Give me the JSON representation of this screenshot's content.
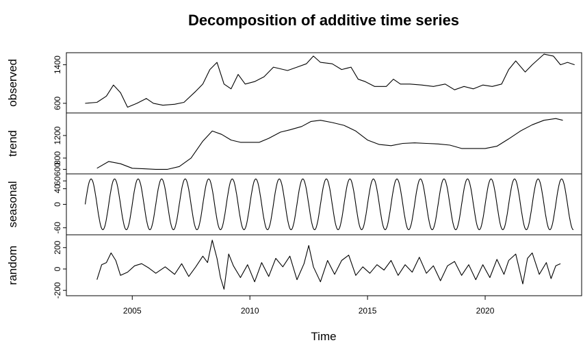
{
  "chart_data": {
    "type": "line",
    "title": "Decomposition of additive time series",
    "xlabel": "Time",
    "xlim": [
      2002.2,
      2024.1
    ],
    "x_ticks": [
      2005,
      2010,
      2015,
      2020
    ],
    "x_tick_labels": [
      "2005",
      "2010",
      "2015",
      "2020"
    ],
    "grid": false,
    "panels": [
      {
        "name": "observed",
        "ylim": [
          400,
          1650
        ],
        "y_ticks": [
          600,
          1400
        ],
        "y_tick_labels": [
          "600",
          "1400"
        ],
        "x": [
          2003.0,
          2003.5,
          2003.9,
          2004.2,
          2004.5,
          2004.8,
          2005.2,
          2005.6,
          2005.9,
          2006.3,
          2006.8,
          2007.2,
          2007.7,
          2008.0,
          2008.3,
          2008.6,
          2008.9,
          2009.2,
          2009.5,
          2009.8,
          2010.2,
          2010.6,
          2011.0,
          2011.6,
          2012.0,
          2012.4,
          2012.7,
          2013.0,
          2013.5,
          2013.9,
          2014.3,
          2014.6,
          2014.9,
          2015.3,
          2015.8,
          2016.1,
          2016.4,
          2016.8,
          2017.3,
          2017.8,
          2018.3,
          2018.7,
          2019.1,
          2019.5,
          2019.9,
          2020.3,
          2020.7,
          2021.0,
          2021.3,
          2021.7,
          2022.0,
          2022.5,
          2022.9,
          2023.2,
          2023.5,
          2023.8
        ],
        "y": [
          600,
          620,
          750,
          980,
          820,
          520,
          600,
          700,
          600,
          560,
          580,
          620,
          850,
          1000,
          1300,
          1450,
          1000,
          900,
          1200,
          1000,
          1050,
          1150,
          1350,
          1280,
          1350,
          1420,
          1580,
          1450,
          1420,
          1300,
          1350,
          1100,
          1050,
          950,
          950,
          1100,
          1000,
          1000,
          980,
          950,
          1000,
          880,
          950,
          900,
          980,
          950,
          1000,
          1300,
          1480,
          1250,
          1400,
          1620,
          1580,
          1400,
          1450,
          1400
        ]
      },
      {
        "name": "trend",
        "ylim": [
          520,
          1600
        ],
        "y_ticks": [
          600,
          800,
          1200
        ],
        "y_tick_labels": [
          "600",
          "800",
          "1200"
        ],
        "x": [
          2003.5,
          2004.0,
          2004.5,
          2005.0,
          2005.5,
          2006.0,
          2006.5,
          2007.0,
          2007.5,
          2008.0,
          2008.4,
          2008.8,
          2009.2,
          2009.6,
          2010.0,
          2010.4,
          2010.8,
          2011.3,
          2011.7,
          2012.2,
          2012.6,
          2013.0,
          2013.5,
          2014.0,
          2014.5,
          2015.0,
          2015.5,
          2016.0,
          2016.5,
          2017.0,
          2017.5,
          2018.0,
          2018.5,
          2019.0,
          2019.5,
          2020.0,
          2020.5,
          2021.0,
          2021.5,
          2022.0,
          2022.5,
          2023.0,
          2023.3
        ],
        "y": [
          620,
          740,
          700,
          620,
          610,
          600,
          600,
          650,
          800,
          1100,
          1280,
          1220,
          1120,
          1080,
          1080,
          1080,
          1150,
          1260,
          1300,
          1360,
          1450,
          1470,
          1430,
          1380,
          1280,
          1120,
          1040,
          1020,
          1060,
          1070,
          1060,
          1050,
          1030,
          970,
          970,
          970,
          1010,
          1140,
          1280,
          1390,
          1470,
          1500,
          1470
        ]
      },
      {
        "name": "seasonal",
        "ylim": [
          -78,
          78
        ],
        "y_ticks": [
          -60,
          0,
          40,
          60
        ],
        "y_tick_labels": [
          "-60",
          "0",
          "40",
          "60"
        ],
        "x_start": 2003.0,
        "x_end": 2023.75,
        "amplitude": 65,
        "period": 1.0,
        "peak_offset": 0.25
      },
      {
        "name": "random",
        "ylim": [
          -250,
          320
        ],
        "y_ticks": [
          -200,
          0,
          200
        ],
        "y_tick_labels": [
          "-200",
          "0",
          "200"
        ],
        "x": [
          2003.5,
          2003.7,
          2003.9,
          2004.1,
          2004.3,
          2004.5,
          2004.8,
          2005.1,
          2005.4,
          2005.7,
          2006.0,
          2006.4,
          2006.8,
          2007.1,
          2007.4,
          2007.7,
          2008.0,
          2008.2,
          2008.4,
          2008.6,
          2008.75,
          2008.9,
          2009.1,
          2009.3,
          2009.6,
          2009.9,
          2010.2,
          2010.5,
          2010.8,
          2011.1,
          2011.4,
          2011.7,
          2012.0,
          2012.3,
          2012.5,
          2012.7,
          2013.0,
          2013.3,
          2013.6,
          2013.9,
          2014.2,
          2014.5,
          2014.8,
          2015.1,
          2015.4,
          2015.7,
          2016.0,
          2016.3,
          2016.6,
          2016.9,
          2017.2,
          2017.5,
          2017.8,
          2018.1,
          2018.4,
          2018.7,
          2019.0,
          2019.3,
          2019.6,
          2019.9,
          2020.2,
          2020.5,
          2020.8,
          2021.0,
          2021.3,
          2021.6,
          2021.8,
          2022.0,
          2022.3,
          2022.6,
          2022.8,
          2023.0,
          2023.2
        ],
        "y": [
          -100,
          40,
          60,
          150,
          80,
          -60,
          -30,
          30,
          50,
          10,
          -40,
          20,
          -50,
          50,
          -70,
          20,
          120,
          60,
          270,
          100,
          -80,
          -190,
          140,
          30,
          -80,
          40,
          -120,
          60,
          -70,
          100,
          20,
          120,
          -100,
          50,
          220,
          20,
          -120,
          80,
          -50,
          80,
          130,
          -60,
          20,
          -40,
          40,
          -10,
          80,
          -60,
          40,
          -30,
          110,
          -40,
          30,
          -110,
          30,
          70,
          -60,
          40,
          -100,
          40,
          -80,
          90,
          -50,
          80,
          140,
          -140,
          100,
          150,
          -50,
          60,
          -90,
          30,
          50
        ]
      }
    ]
  }
}
